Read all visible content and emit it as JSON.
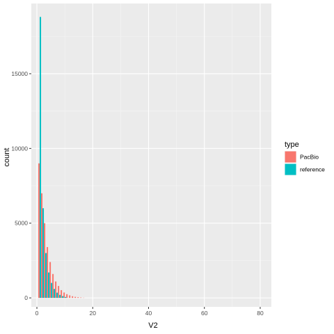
{
  "chart_data": {
    "type": "bar",
    "xlabel": "V2",
    "ylabel": "count",
    "xlim": [
      -2,
      84
    ],
    "ylim": [
      -600,
      19700
    ],
    "x_ticks": [
      0,
      20,
      40,
      60,
      80
    ],
    "y_ticks": [
      0,
      5000,
      10000,
      15000
    ],
    "x_tick_labels": [
      "0",
      "20",
      "40",
      "60",
      "80"
    ],
    "y_tick_labels": [
      "0",
      "5000",
      "10000",
      "15000"
    ],
    "grid": true,
    "legend_position": "right",
    "legend_title": "type",
    "series": [
      {
        "name": "reference",
        "color": "#00BFC4",
        "x": [
          1,
          2,
          3,
          4,
          5,
          6,
          7,
          8,
          9,
          10
        ],
        "values": [
          18800,
          6000,
          3000,
          1700,
          1000,
          600,
          350,
          200,
          120,
          60
        ]
      },
      {
        "name": "PacBio",
        "color": "#F8766D",
        "x": [
          1,
          2,
          3,
          4,
          5,
          6,
          7,
          8,
          9,
          10,
          11,
          12,
          13,
          14,
          15,
          16,
          17
        ],
        "values": [
          9000,
          7000,
          5000,
          3400,
          2400,
          1600,
          1100,
          800,
          520,
          360,
          250,
          170,
          110,
          70,
          45,
          25,
          12
        ]
      }
    ]
  }
}
